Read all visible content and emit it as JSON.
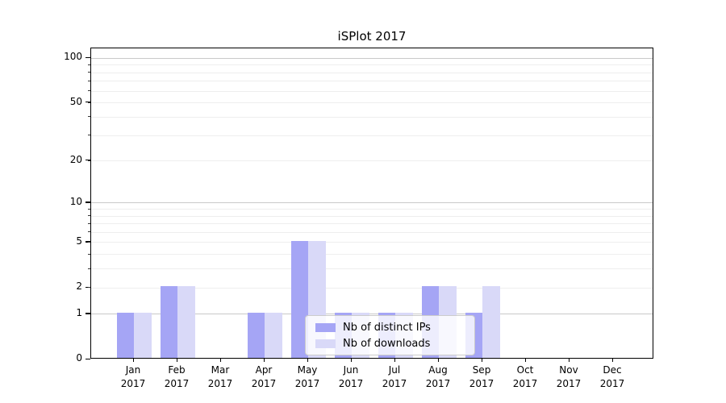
{
  "chart_data": {
    "type": "bar",
    "title": "iSPlot 2017",
    "categories": [
      "Jan 2017",
      "Feb 2017",
      "Mar 2017",
      "Apr 2017",
      "May 2017",
      "Jun 2017",
      "Jul 2017",
      "Aug 2017",
      "Sep 2017",
      "Oct 2017",
      "Nov 2017",
      "Dec 2017"
    ],
    "series": [
      {
        "name": "Nb of distinct IPs",
        "color": "#a5a5f5",
        "values": [
          1,
          2,
          0,
          1,
          5,
          1,
          1,
          2,
          1,
          0,
          0,
          0
        ]
      },
      {
        "name": "Nb of downloads",
        "color": "#d9d9f8",
        "values": [
          1,
          2,
          0,
          1,
          5,
          1,
          1,
          2,
          2,
          0,
          0,
          0
        ]
      }
    ],
    "xlabel": "",
    "ylabel": "",
    "yscale": "log1p",
    "ylim": [
      0,
      116.8
    ],
    "yticks": [
      0,
      1,
      2,
      5,
      10,
      20,
      50,
      100
    ],
    "gridlines_major": [
      1,
      10,
      100
    ],
    "gridlines_minor": [
      2,
      3,
      4,
      5,
      6,
      7,
      8,
      9,
      20,
      30,
      40,
      50,
      60,
      70,
      80,
      90
    ],
    "grid": true,
    "legend_position": "lower center",
    "colors": {
      "grid_major": "#c9c9c9",
      "grid_minor": "#eeeeee",
      "axis": "#000000",
      "legend_border": "#cccccc"
    }
  }
}
